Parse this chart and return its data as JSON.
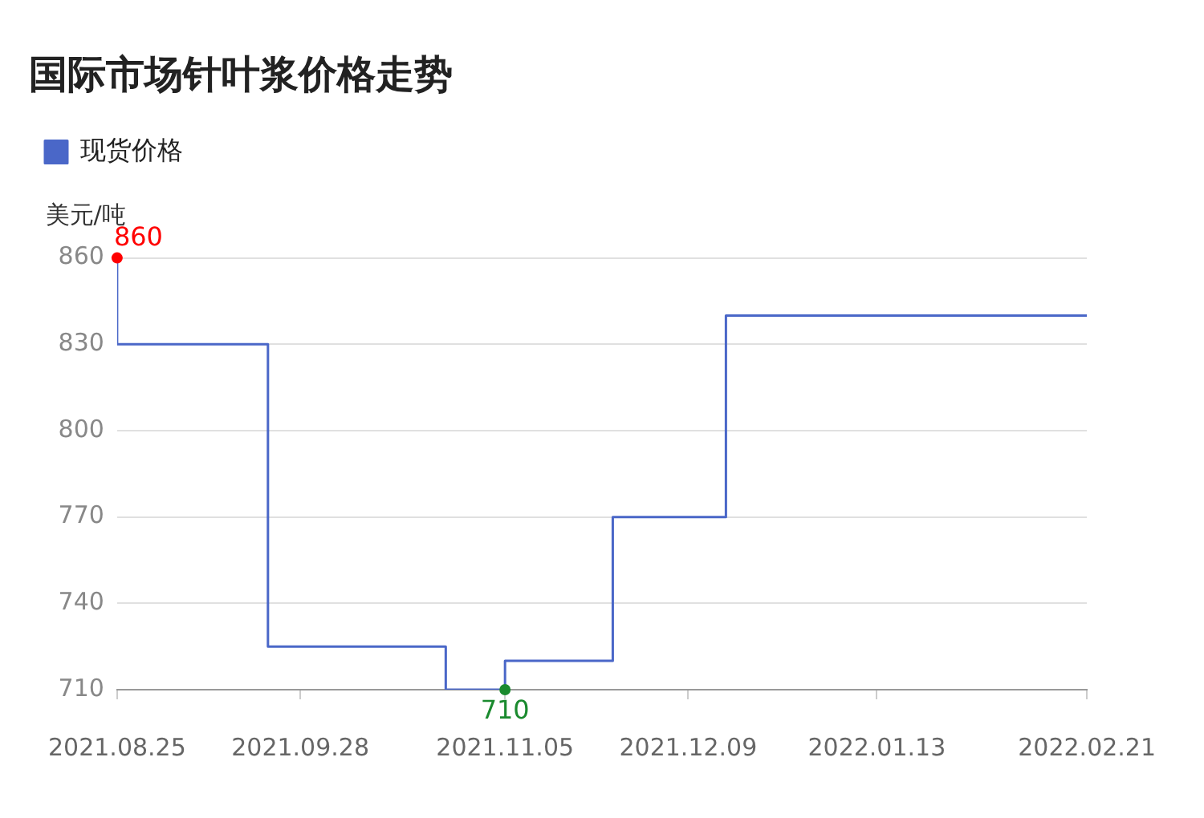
{
  "chart_data": {
    "type": "step",
    "title": "国际市场针叶浆价格走势",
    "ylabel": "美元/吨",
    "x": [
      "2021-08-25",
      "2021-09-22",
      "2021-10-25",
      "2021-11-05",
      "2021-11-25",
      "2021-12-16",
      "2022-01-13",
      "2022-02-21"
    ],
    "series": [
      {
        "name": "现货价格",
        "color": "#4a67c8",
        "values": [
          860,
          830,
          725,
          710,
          720,
          770,
          840,
          840
        ]
      }
    ],
    "xlim": [
      "2021-08-25",
      "2022-02-21"
    ],
    "xticks": [
      {
        "value": "2021-08-25",
        "label": "2021.08.25"
      },
      {
        "value": "2021-09-28",
        "label": "2021.09.28"
      },
      {
        "value": "2021-11-05",
        "label": "2021.11.05"
      },
      {
        "value": "2021-12-09",
        "label": "2021.12.09"
      },
      {
        "value": "2022-01-13",
        "label": "2022.01.13"
      },
      {
        "value": "2022-02-21",
        "label": "2022.02.21"
      }
    ],
    "ylim": [
      710,
      860
    ],
    "yticks": [
      710,
      740,
      770,
      800,
      830,
      860
    ],
    "grid": "y",
    "legend": "top left",
    "marker": "none",
    "line_style": "solid",
    "annotations": [
      {
        "text": "860",
        "x": "2021-08-25",
        "y": 860
      },
      {
        "text": "710",
        "x": "2021-11-05",
        "y": 710
      }
    ]
  }
}
